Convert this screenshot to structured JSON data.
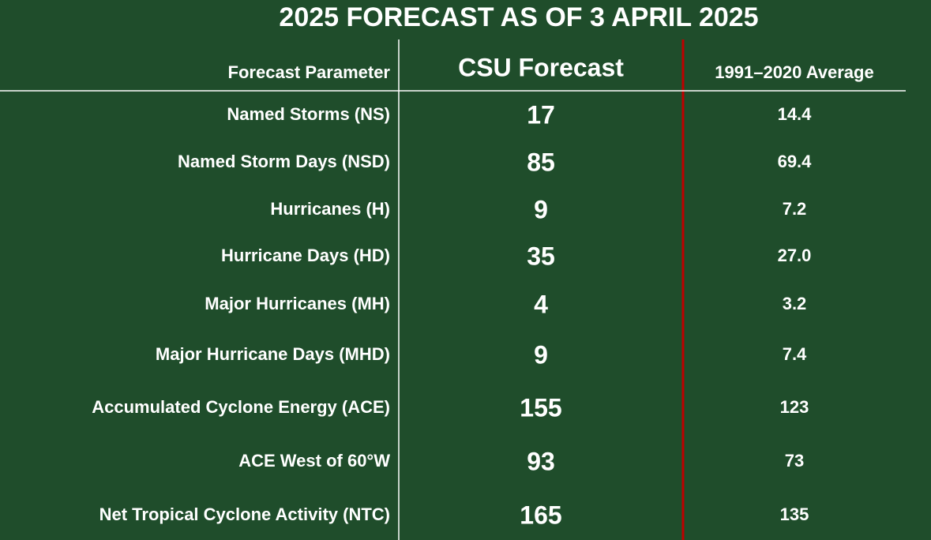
{
  "title": "2025 FORECAST AS OF 3 APRIL 2025",
  "table": {
    "header": [
      "Forecast Parameter",
      "CSU Forecast",
      "1991–2020 Average"
    ],
    "rows": [
      [
        "Named Storms (NS)",
        "17",
        "14.4"
      ],
      [
        "Named Storm Days (NSD)",
        "85",
        "69.4"
      ],
      [
        "Hurricanes (H)",
        "9",
        "7.2"
      ],
      [
        "Hurricane Days (HD)",
        "35",
        "27.0"
      ],
      [
        "Major Hurricanes (MH)",
        "4",
        "3.2"
      ],
      [
        "Major Hurricane Days (MHD)",
        "9",
        "7.4"
      ],
      [
        "Accumulated Cyclone Energy (ACE)",
        "155",
        "123"
      ],
      [
        "ACE West of 60°W",
        "93",
        "73"
      ],
      [
        "Net Tropical Cyclone Activity (NTC)",
        "165",
        "135"
      ]
    ]
  }
}
